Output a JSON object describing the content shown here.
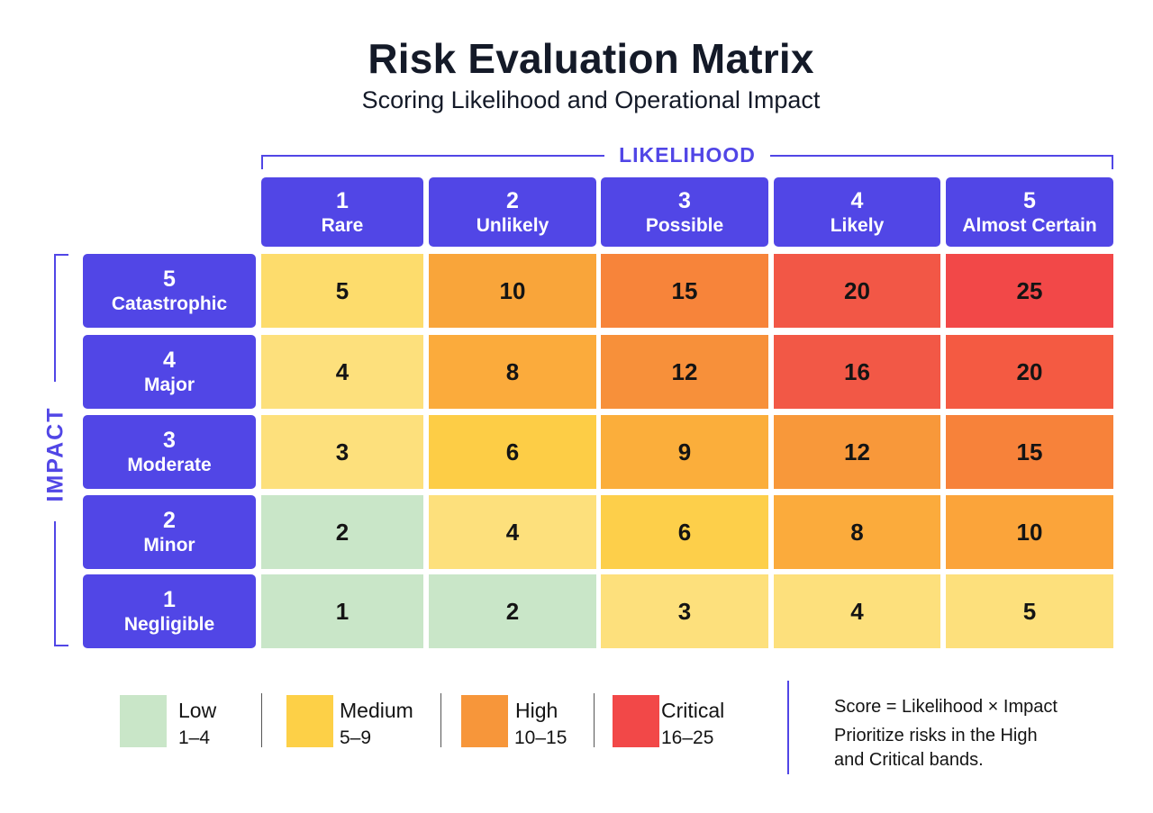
{
  "title": "Risk Evaluation Matrix",
  "subtitle": "Scoring Likelihood and Operational Impact",
  "likelihood_axis": "LIKELIHOOD",
  "impact_axis": "IMPACT",
  "columns": [
    {
      "num": "1",
      "label": "Rare"
    },
    {
      "num": "2",
      "label": "Unlikely"
    },
    {
      "num": "3",
      "label": "Possible"
    },
    {
      "num": "4",
      "label": "Likely"
    },
    {
      "num": "5",
      "label": "Almost Certain"
    }
  ],
  "rows": [
    {
      "num": "5",
      "label": "Catastrophic",
      "scores": [
        "5",
        "10",
        "15",
        "20",
        "25"
      ]
    },
    {
      "num": "4",
      "label": "Major",
      "scores": [
        "4",
        "8",
        "12",
        "16",
        "20"
      ]
    },
    {
      "num": "3",
      "label": "Moderate",
      "scores": [
        "3",
        "6",
        "9",
        "12",
        "15"
      ]
    },
    {
      "num": "2",
      "label": "Minor",
      "scores": [
        "2",
        "4",
        "6",
        "8",
        "10"
      ]
    },
    {
      "num": "1",
      "label": "Negligible",
      "scores": [
        "1",
        "2",
        "3",
        "4",
        "5"
      ]
    }
  ],
  "legend": [
    {
      "name": "Low",
      "range": "1–4",
      "color": "#c9e6c8"
    },
    {
      "name": "Medium",
      "range": "5–9",
      "color": "#fdd047"
    },
    {
      "name": "High",
      "range": "10–15",
      "color": "#f7963a"
    },
    {
      "name": "Critical",
      "range": "16–25",
      "color": "#f24848"
    }
  ],
  "notes": {
    "formula": "Score = Likelihood × Impact",
    "line2": "Prioritize risks in the High",
    "line3": "and Critical bands."
  },
  "colors": {
    "header": "#5146e6",
    "low": "#c9e6c8",
    "medium_light": "#fde07c",
    "medium": "#fdcd46",
    "high_light": "#fbab3c",
    "high": "#f7823a",
    "critical": "#f24848",
    "critical_mid": "#f45a42"
  }
}
